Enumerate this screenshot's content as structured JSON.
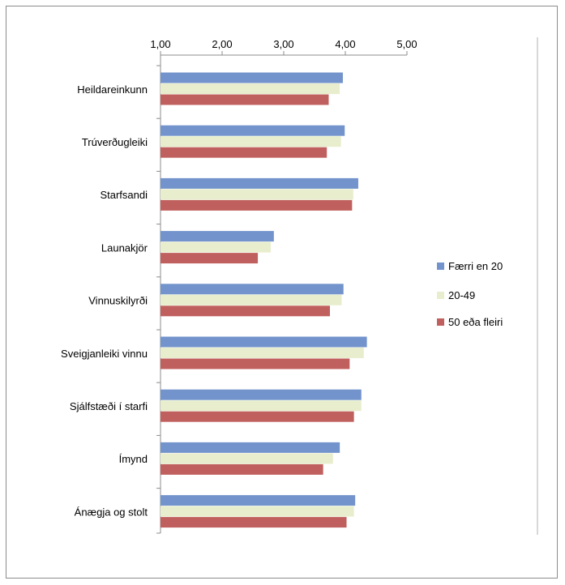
{
  "chart_data": {
    "type": "bar",
    "orientation": "horizontal",
    "categories": [
      "Heildareinkunn",
      "Trúverðugleiki",
      "Starfsandi",
      "Launakjör",
      "Vinnuskilyrði",
      "Sveigjanleiki vinnu",
      "Sjálfstæði í starfi",
      "Ímynd",
      "Ánægja og stolt"
    ],
    "series": [
      {
        "name": "Færri en 20",
        "color": "#7293cb",
        "values": [
          3.96,
          3.99,
          4.21,
          2.84,
          3.97,
          4.35,
          4.26,
          3.91,
          4.16
        ]
      },
      {
        "name": "20-49",
        "color": "#e8eecd",
        "values": [
          3.91,
          3.93,
          4.13,
          2.79,
          3.94,
          4.3,
          4.26,
          3.8,
          4.14
        ]
      },
      {
        "name": "50 eða fleiri",
        "color": "#c0605e",
        "values": [
          3.73,
          3.7,
          4.11,
          2.58,
          3.75,
          4.07,
          4.14,
          3.64,
          4.02
        ]
      }
    ],
    "x_ticks": [
      "1,00",
      "2,00",
      "3,00",
      "4,00",
      "5,00"
    ],
    "xlim": [
      1,
      5
    ],
    "xaxis_position": "top",
    "legend_position": "right",
    "grid": false,
    "title": "",
    "xlabel": "",
    "ylabel": ""
  }
}
